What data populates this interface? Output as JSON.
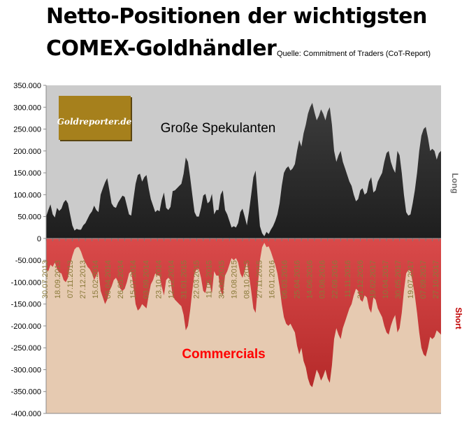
{
  "title_line1": "Netto-Positionen der wichtigsten",
  "title_line2": "COMEX-Goldhändler",
  "source": "Quelle: Commitment of Traders (CoT-Report)",
  "logo_text": "Goldreporter.de",
  "colors": {
    "long_bg": "#cbcbcb",
    "short_bg": "#e6cab1",
    "long_fill": "#3c3c3c",
    "short_fill": "#b52a2a",
    "logo_bg": "#a6801c",
    "commercials_label": "#ff0000",
    "short_axis_label": "#c00000",
    "date_labels": "#8a7a3a"
  },
  "chart_data": {
    "type": "area",
    "title": "Netto-Positionen der wichtigsten COMEX-Goldhändler",
    "subtitle": "Quelle: Commitment of Traders (CoT-Report)",
    "y_ticks": [
      "350.000",
      "300.000",
      "250.000",
      "200.000",
      "150.000",
      "100.000",
      "50.000",
      "0",
      "-50.000",
      "-100.000",
      "-150.000",
      "-200.000",
      "-250.000",
      "-300.000",
      "-350.000",
      "-400.000"
    ],
    "ylim": [
      -400000,
      350000
    ],
    "x_tick_labels": [
      "30.07.2013",
      "18.09.2013",
      "07.11.2013",
      "27.12.2013",
      "15.02.2014",
      "06.04.2014",
      "26.05.2014",
      "15.07.2014",
      "03.09.2014",
      "23.10.2014",
      "12.12.2014",
      "31.01.2015",
      "22.03.2015",
      "11.05.2015",
      "30.06.2015",
      "19.08.2015",
      "08.10.2015",
      "27.11.2015",
      "16.01.2016",
      "06.03.2016",
      "25.04.2016",
      "14.06.2016",
      "03.08.2016",
      "22.09.2016",
      "11.11.2016",
      "31.12.2016",
      "19.02.2017",
      "10.04.2017",
      "30.05.2017",
      "19.07.2017",
      "07.09.2017",
      "27.10.2017"
    ],
    "right_axis_top": "Long",
    "right_axis_bottom": "Short",
    "series": [
      {
        "name": "Große Spekulanten",
        "values": [
          50000,
          65000,
          78000,
          55000,
          48000,
          70000,
          63000,
          68000,
          82000,
          88000,
          80000,
          55000,
          30000,
          18000,
          22000,
          20000,
          20000,
          30000,
          35000,
          45000,
          55000,
          62000,
          75000,
          65000,
          60000,
          100000,
          115000,
          128000,
          138000,
          110000,
          80000,
          72000,
          70000,
          82000,
          90000,
          98000,
          95000,
          75000,
          55000,
          52000,
          90000,
          125000,
          145000,
          148000,
          130000,
          140000,
          145000,
          115000,
          90000,
          75000,
          60000,
          65000,
          62000,
          88000,
          105000,
          70000,
          65000,
          72000,
          108000,
          110000,
          115000,
          120000,
          125000,
          148000,
          185000,
          175000,
          140000,
          100000,
          60000,
          50000,
          50000,
          70000,
          98000,
          102000,
          80000,
          85000,
          102000,
          55000,
          65000,
          65000,
          100000,
          110000,
          65000,
          55000,
          40000,
          25000,
          28000,
          25000,
          35000,
          60000,
          68000,
          50000,
          30000,
          62000,
          100000,
          140000,
          155000,
          90000,
          28000,
          12000,
          5000,
          15000,
          10000,
          20000,
          28000,
          40000,
          55000,
          80000,
          120000,
          150000,
          160000,
          165000,
          155000,
          160000,
          170000,
          200000,
          225000,
          210000,
          240000,
          260000,
          285000,
          300000,
          310000,
          288000,
          270000,
          280000,
          295000,
          285000,
          270000,
          290000,
          300000,
          260000,
          200000,
          175000,
          190000,
          200000,
          175000,
          160000,
          145000,
          130000,
          120000,
          100000,
          85000,
          90000,
          110000,
          115000,
          100000,
          105000,
          130000,
          140000,
          105000,
          110000,
          130000,
          140000,
          150000,
          175000,
          195000,
          200000,
          175000,
          160000,
          150000,
          200000,
          190000,
          150000,
          100000,
          60000,
          52000,
          55000,
          80000,
          110000,
          150000,
          200000,
          235000,
          250000,
          255000,
          230000,
          200000,
          205000,
          200000,
          180000,
          195000,
          200000
        ]
      },
      {
        "name": "Commercials",
        "values": [
          -70000,
          -75000,
          -60000,
          -65000,
          -55000,
          -70000,
          -78000,
          -80000,
          -95000,
          -100000,
          -90000,
          -60000,
          -40000,
          -25000,
          -20000,
          -20000,
          -30000,
          -45000,
          -55000,
          -65000,
          -70000,
          -80000,
          -95000,
          -85000,
          -75000,
          -120000,
          -135000,
          -150000,
          -140000,
          -120000,
          -110000,
          -95000,
          -90000,
          -100000,
          -115000,
          -120000,
          -115000,
          -100000,
          -80000,
          -75000,
          -110000,
          -150000,
          -165000,
          -160000,
          -150000,
          -155000,
          -160000,
          -130000,
          -105000,
          -95000,
          -80000,
          -85000,
          -85000,
          -110000,
          -130000,
          -95000,
          -90000,
          -95000,
          -130000,
          -140000,
          -145000,
          -150000,
          -155000,
          -175000,
          -210000,
          -200000,
          -165000,
          -120000,
          -80000,
          -70000,
          -70000,
          -90000,
          -120000,
          -125000,
          -100000,
          -105000,
          -125000,
          -75000,
          -85000,
          -85000,
          -120000,
          -130000,
          -85000,
          -75000,
          -60000,
          -45000,
          -50000,
          -45000,
          -55000,
          -80000,
          -90000,
          -75000,
          -55000,
          -85000,
          -120000,
          -160000,
          -170000,
          -110000,
          -50000,
          -20000,
          -10000,
          -20000,
          -18000,
          -30000,
          -45000,
          -60000,
          -80000,
          -110000,
          -150000,
          -180000,
          -195000,
          -200000,
          -195000,
          -205000,
          -215000,
          -245000,
          -265000,
          -250000,
          -280000,
          -295000,
          -320000,
          -335000,
          -340000,
          -320000,
          -300000,
          -310000,
          -325000,
          -315000,
          -300000,
          -320000,
          -330000,
          -290000,
          -230000,
          -205000,
          -220000,
          -230000,
          -205000,
          -190000,
          -175000,
          -160000,
          -150000,
          -130000,
          -115000,
          -120000,
          -140000,
          -145000,
          -130000,
          -135000,
          -160000,
          -170000,
          -135000,
          -140000,
          -160000,
          -170000,
          -180000,
          -200000,
          -215000,
          -220000,
          -200000,
          -185000,
          -175000,
          -215000,
          -205000,
          -170000,
          -120000,
          -80000,
          -72000,
          -75000,
          -100000,
          -130000,
          -170000,
          -215000,
          -250000,
          -265000,
          -270000,
          -250000,
          -225000,
          -230000,
          -225000,
          -210000,
          -215000,
          -220000
        ]
      }
    ]
  }
}
